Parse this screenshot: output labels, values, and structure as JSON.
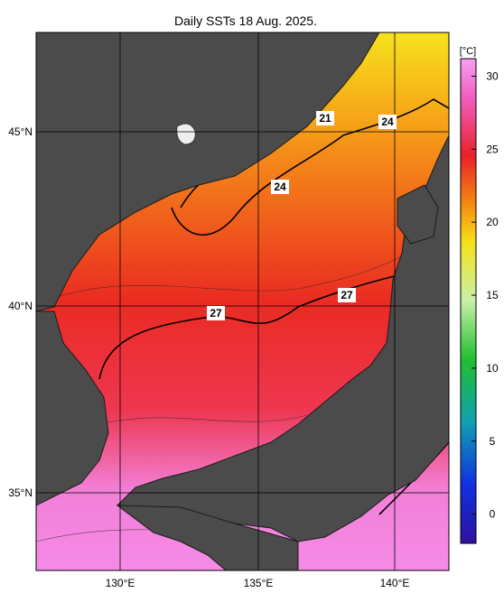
{
  "title": "Daily SSTs 18 Aug. 2025.",
  "map": {
    "lon_labels": [
      "130°E",
      "135°E",
      "140°E"
    ],
    "lat_labels": [
      "45°N",
      "40°N",
      "35°N"
    ],
    "contour_labels": [
      "21",
      "24",
      "24",
      "27",
      "27"
    ]
  },
  "colorbar": {
    "unit": "[°C]",
    "lim": [
      -2,
      31.2
    ],
    "ticks": [
      0,
      5,
      10,
      15,
      20,
      25,
      30
    ]
  }
}
